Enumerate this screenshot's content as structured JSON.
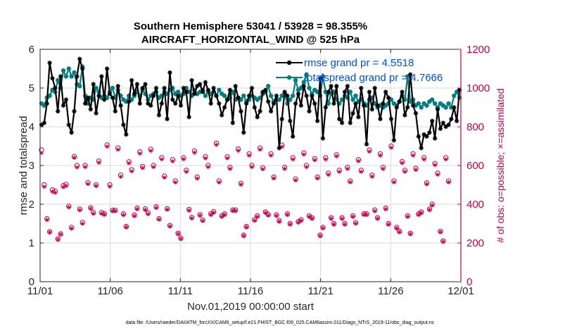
{
  "chart_data": {
    "type": "line",
    "title": [
      "Southern Hemisphere 53041 / 53928 = 98.355%",
      "AIRCRAFT_HORIZONTAL_WIND @ 525 hPa"
    ],
    "xlabel": "Nov.01,2019 00:00:00 start",
    "ylabel_left": "rmse and totalspread",
    "ylabel_right": "# of obs: o=possible; ×=assimilated",
    "xlim": [
      0,
      30
    ],
    "ylim_left": [
      0,
      6
    ],
    "ylim_right": [
      0,
      1200
    ],
    "x_ticks": [
      0,
      5,
      10,
      15,
      20,
      25,
      30
    ],
    "x_tick_labels": [
      "11/01",
      "11/06",
      "11/11",
      "11/16",
      "11/21",
      "11/26",
      "12/01"
    ],
    "y_left_ticks": [
      "0",
      "1",
      "2",
      "3",
      "4",
      "5",
      "6"
    ],
    "y_right_ticks": [
      "0",
      "200",
      "400",
      "600",
      "800",
      "1000",
      "1200"
    ],
    "legend": [
      "rmse grand pr = 4.5518",
      "totalspread grand pr = 4.7666"
    ],
    "colors": {
      "rmse": "#000000",
      "spread": "#008080",
      "obs": "#c8004f",
      "legend_text": "#0050ff"
    },
    "series": [
      {
        "name": "rmse",
        "axis": "left",
        "values": [
          4.05,
          4.1,
          4.6,
          5.65,
          5.25,
          5.0,
          4.4,
          5.3,
          4.55,
          4.7,
          4.05,
          3.85,
          4.4,
          5.3,
          5.75,
          5.5,
          4.6,
          4.75,
          4.45,
          5.1,
          4.35,
          4.8,
          5.3,
          4.7,
          5.5,
          4.85,
          4.75,
          4.4,
          5.05,
          4.55,
          4.05,
          3.8,
          4.65,
          5.2,
          4.85,
          5.1,
          4.6,
          5.0,
          5.1,
          4.6,
          4.55,
          4.8,
          5.0,
          4.3,
          4.6,
          5.0,
          4.2,
          5.4,
          4.7,
          4.6,
          4.8,
          4.55,
          5.0,
          4.9,
          4.25,
          5.2,
          4.85,
          5.05,
          5.1,
          4.9,
          5.15,
          4.95,
          4.6,
          5.0,
          4.8,
          4.6,
          4.3,
          4.5,
          4.7,
          4.95,
          4.1,
          5.05,
          4.75,
          4.4,
          3.85,
          4.6,
          4.8,
          5.0,
          4.5,
          4.25,
          4.4,
          4.9,
          4.95,
          4.65,
          4.4,
          4.6,
          4.8,
          3.45,
          4.2,
          4.9,
          4.8,
          4.15,
          3.75,
          4.6,
          4.85,
          4.55,
          5.05,
          4.8,
          4.4,
          4.8,
          4.6,
          4.15,
          5.25,
          3.7,
          4.5,
          4.9,
          5.05,
          4.6,
          5.05,
          4.2,
          4.1,
          4.9,
          5.05,
          4.1,
          4.35,
          4.6,
          4.25,
          5.0,
          4.55,
          3.55,
          4.9,
          4.45,
          5.0,
          4.55,
          4.2,
          4.6,
          4.9,
          4.75,
          4.2,
          3.65,
          4.5,
          4.65,
          4.9,
          4.3,
          4.5,
          5.35,
          4.55,
          4.35,
          3.75,
          3.45,
          3.8,
          3.75,
          3.85,
          4.15,
          3.7,
          4.45,
          3.95,
          4.1,
          4.0,
          4.05,
          4.2,
          4.5,
          4.15,
          4.95
        ]
      },
      {
        "name": "totalspread",
        "axis": "left",
        "values": [
          4.6,
          4.55,
          4.75,
          4.8,
          4.95,
          4.9,
          5.2,
          5.0,
          5.45,
          5.3,
          5.5,
          5.3,
          5.4,
          5.1,
          5.05,
          5.55,
          4.8,
          4.6,
          4.75,
          4.7,
          5.0,
          4.9,
          4.75,
          4.8,
          4.75,
          4.9,
          5.0,
          4.75,
          4.95,
          4.8,
          4.7,
          4.65,
          4.8,
          4.7,
          4.8,
          4.9,
          4.8,
          4.95,
          4.85,
          4.7,
          4.8,
          4.85,
          4.9,
          4.75,
          4.8,
          4.9,
          4.85,
          4.95,
          5.0,
          4.85,
          4.9,
          4.8,
          4.85,
          5.0,
          4.9,
          4.8,
          4.95,
          4.85,
          4.9,
          4.95,
          4.8,
          4.9,
          4.85,
          4.9,
          4.8,
          4.95,
          4.85,
          4.8,
          4.7,
          4.75,
          4.9,
          4.7,
          4.75,
          4.7,
          4.8,
          4.65,
          4.7,
          4.8,
          4.75,
          4.7,
          4.75,
          4.85,
          4.9,
          5.05,
          4.8,
          4.65,
          4.7,
          4.7,
          4.8,
          4.85,
          4.6,
          4.7,
          4.8,
          5.2,
          4.95,
          5.0,
          5.15,
          5.35,
          5.0,
          4.85,
          4.95,
          4.9,
          4.8,
          5.3,
          4.9,
          4.6,
          4.85,
          4.9,
          4.7,
          4.6,
          4.7,
          4.8,
          4.75,
          4.9,
          4.7,
          4.8,
          4.65,
          4.7,
          4.6,
          4.55,
          4.7,
          4.75,
          4.6,
          4.5,
          4.55,
          4.5,
          4.55,
          4.6,
          4.7,
          4.6,
          4.55,
          4.65,
          4.8,
          4.7,
          5.3,
          4.65,
          4.7,
          4.55,
          4.6,
          4.5,
          4.6,
          4.55,
          4.65,
          4.7,
          4.6,
          4.5,
          4.6,
          4.55,
          4.5,
          4.6,
          4.5,
          4.8,
          4.9,
          4.75
        ]
      },
      {
        "name": "obs_possible",
        "axis": "right",
        "values": [
          680,
          500,
          325,
          258,
          474,
          467,
          221,
          247,
          496,
          502,
          390,
          280,
          646,
          600,
          375,
          306,
          600,
          512,
          382,
          357,
          500,
          623,
          357,
          351,
          706,
          500,
          369,
          369,
          690,
          550,
          350,
          285,
          619,
          578,
          344,
          380,
          670,
          595,
          376,
          355,
          684,
          600,
          387,
          325,
          640,
          545,
          377,
          290,
          630,
          520,
          250,
          225,
          640,
          575,
          373,
          332,
          675,
          540,
          346,
          318,
          645,
          600,
          350,
          362,
          715,
          520,
          340,
          350,
          645,
          590,
          370,
          370,
          685,
          508,
          240,
          285,
          660,
          600,
          320,
          340,
          690,
          588,
          360,
          347,
          660,
          540,
          345,
          315,
          705,
          590,
          350,
          300,
          640,
          530,
          310,
          320,
          665,
          600,
          340,
          330,
          635,
          540,
          240,
          280,
          640,
          560,
          330,
          300,
          655,
          575,
          330,
          300,
          590,
          520,
          340,
          305,
          630,
          575,
          350,
          350,
          680,
          550,
          370,
          330,
          660,
          590,
          380,
          300,
          700,
          520,
          280,
          260,
          620,
          575,
          340,
          250,
          660,
          585,
          350,
          360,
          640,
          510,
          375,
          400,
          610,
          560,
          260,
          210,
          640,
          520
        ]
      },
      {
        "name": "obs_assimilated",
        "axis": "right",
        "values": [
          665,
          490,
          320,
          255,
          465,
          460,
          218,
          245,
          488,
          495,
          385,
          275,
          640,
          590,
          370,
          300,
          592,
          505,
          378,
          352,
          495,
          615,
          352,
          347,
          698,
          492,
          365,
          365,
          682,
          542,
          345,
          282,
          612,
          570,
          340,
          375,
          662,
          588,
          371,
          350,
          676,
          592,
          382,
          322,
          632,
          538,
          373,
          286,
          622,
          513,
          247,
          222,
          633,
          568,
          368,
          328,
          667,
          533,
          342,
          314,
          638,
          592,
          346,
          357,
          707,
          513,
          336,
          346,
          638,
          583,
          366,
          366,
          677,
          502,
          237,
          282,
          652,
          592,
          316,
          336,
          682,
          581,
          356,
          343,
          652,
          534,
          341,
          311,
          697,
          583,
          346,
          297,
          632,
          524,
          306,
          316,
          657,
          592,
          336,
          326,
          628,
          534,
          237,
          277,
          632,
          553,
          326,
          296,
          648,
          568,
          326,
          296,
          583,
          514,
          336,
          301,
          623,
          568,
          346,
          346,
          672,
          543,
          365,
          326,
          652,
          583,
          375,
          296,
          692,
          514,
          276,
          257,
          613,
          568,
          336,
          247,
          652,
          578,
          346,
          356,
          632,
          504,
          371,
          395,
          603,
          553,
          257,
          207,
          632,
          514
        ]
      }
    ],
    "footnote": "data file: /Users/raeder/DAI/ATM_forcXX/CAM6_setup/f.e21.FHIST_BGC.f09_025.CAM6assim.011/Diags_NTrS_2019-11/obs_diag_output.nc"
  }
}
